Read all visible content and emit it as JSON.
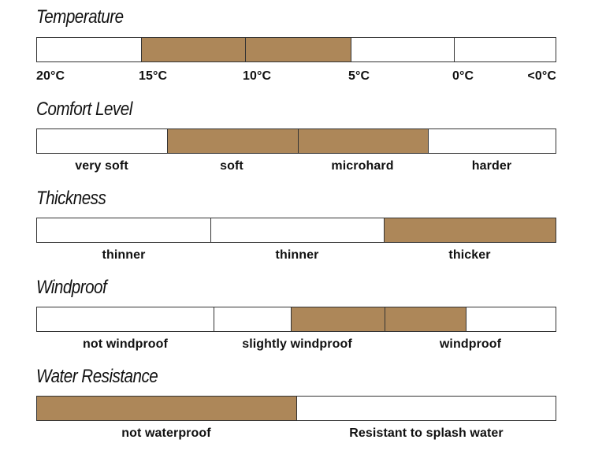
{
  "fill_color": "#ad8759",
  "sections": [
    {
      "title": "Temperature",
      "labels": [
        "20°C",
        "15°C",
        "10°C",
        "5°C",
        "0°C",
        "<0°C"
      ]
    },
    {
      "title": "Comfort Level",
      "labels": [
        "very soft",
        "soft",
        "microhard",
        "harder"
      ]
    },
    {
      "title": "Thickness",
      "labels": [
        "thinner",
        "thinner",
        "thicker"
      ]
    },
    {
      "title": "Windproof",
      "labels": [
        "not windproof",
        "slightly windproof",
        "windproof"
      ]
    },
    {
      "title": "Water Resistance",
      "labels": [
        "not waterproof",
        "Resistant to splash water"
      ]
    }
  ]
}
